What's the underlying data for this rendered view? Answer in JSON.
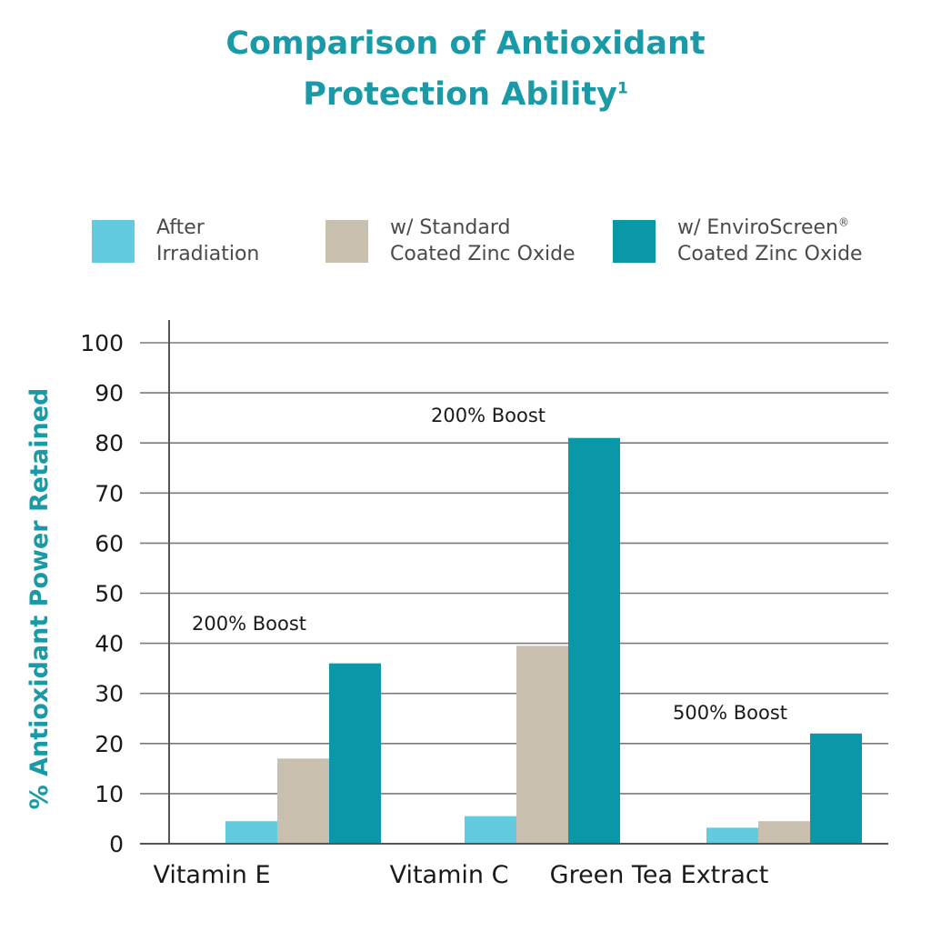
{
  "chart_data": {
    "type": "bar",
    "title": "Comparison of Antioxidant Protection Ability",
    "title_superscript": "1",
    "xlabel": "",
    "ylabel": "% Antioxidant Power Retained",
    "ylim": [
      0,
      100
    ],
    "yticks": [
      0,
      10,
      20,
      30,
      40,
      50,
      60,
      70,
      80,
      90,
      100
    ],
    "grid": true,
    "legend_position": "top",
    "categories": [
      "Vitamin E",
      "Vitamin C",
      "Green Tea Extract"
    ],
    "series": [
      {
        "name": "After Irradiation",
        "label_lines": [
          "After",
          "Irradiation"
        ],
        "color": "#63cbe0",
        "values": [
          4.5,
          5.5,
          3.2
        ]
      },
      {
        "name": "w/ Standard Coated Zinc Oxide",
        "label_lines": [
          "w/ Standard",
          "Coated Zinc Oxide"
        ],
        "color": "#c8bfaf",
        "values": [
          17,
          39.5,
          4.5
        ]
      },
      {
        "name": "w/ EnviroScreen® Coated Zinc Oxide",
        "label_lines": [
          "w/ EnviroScreen",
          "Coated Zinc Oxide"
        ],
        "label_superscript": "®",
        "color": "#0a98a8",
        "values": [
          36,
          81,
          22
        ]
      }
    ],
    "annotations": [
      {
        "text": "200% Boost",
        "category": "Vitamin E"
      },
      {
        "text": "200% Boost",
        "category": "Vitamin C"
      },
      {
        "text": "500% Boost",
        "category": "Green Tea Extract"
      }
    ]
  },
  "colors": {
    "title": "#1a9aa6",
    "axis": "#555555",
    "grid": "#7a7a7a",
    "text": "#1a1a1a",
    "legend_text": "#4a4a4a"
  }
}
